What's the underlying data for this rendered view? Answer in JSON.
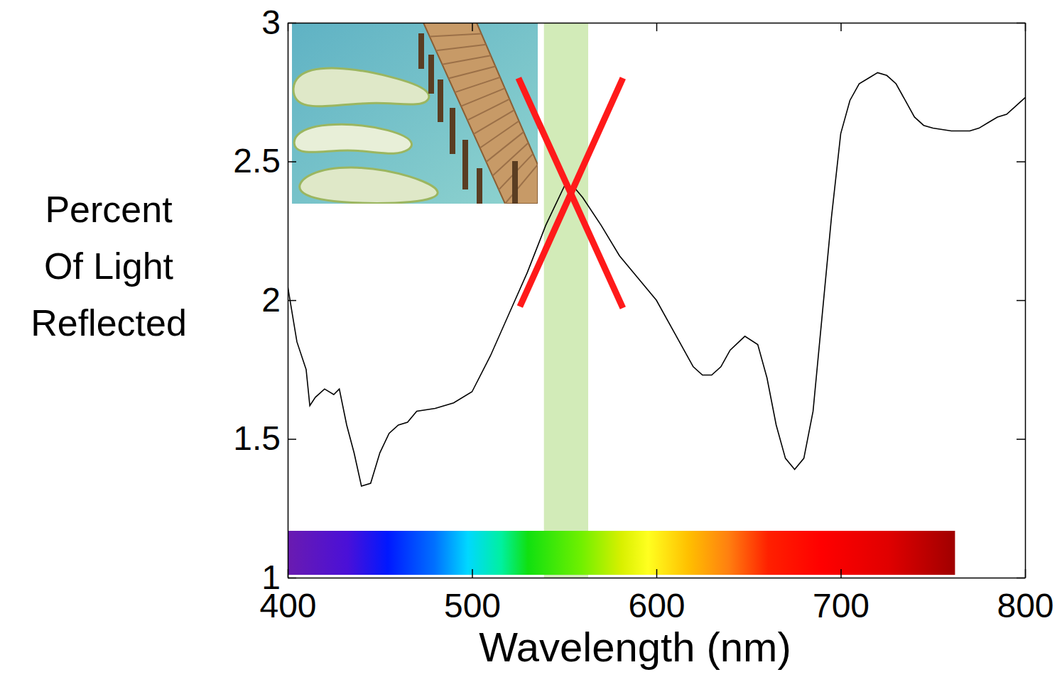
{
  "chart_data": {
    "type": "line",
    "x": [
      400,
      405,
      410,
      412,
      415,
      420,
      425,
      428,
      432,
      436,
      440,
      445,
      450,
      455,
      460,
      465,
      470,
      480,
      490,
      500,
      510,
      520,
      530,
      540,
      550,
      555,
      560,
      570,
      580,
      590,
      600,
      610,
      620,
      625,
      630,
      635,
      640,
      648,
      655,
      660,
      665,
      670,
      675,
      680,
      685,
      690,
      695,
      700,
      705,
      710,
      715,
      720,
      725,
      730,
      735,
      740,
      745,
      750,
      760,
      770,
      775,
      780,
      785,
      790,
      795,
      800
    ],
    "values": [
      2.05,
      1.85,
      1.75,
      1.62,
      1.65,
      1.68,
      1.66,
      1.68,
      1.55,
      1.45,
      1.33,
      1.34,
      1.45,
      1.52,
      1.55,
      1.56,
      1.6,
      1.61,
      1.63,
      1.67,
      1.8,
      1.95,
      2.1,
      2.27,
      2.41,
      2.41,
      2.37,
      2.27,
      2.16,
      2.08,
      2.0,
      1.88,
      1.76,
      1.73,
      1.73,
      1.76,
      1.82,
      1.87,
      1.84,
      1.72,
      1.55,
      1.43,
      1.39,
      1.43,
      1.6,
      1.95,
      2.3,
      2.6,
      2.72,
      2.78,
      2.8,
      2.82,
      2.81,
      2.78,
      2.72,
      2.66,
      2.63,
      2.62,
      2.61,
      2.61,
      2.62,
      2.64,
      2.66,
      2.67,
      2.7,
      2.73
    ],
    "color": "#000000",
    "x_label": "Wavelength (nm)",
    "y_label": "Percent Of Light Reflected",
    "xlim": [
      400,
      800
    ],
    "ylim": [
      1,
      3
    ],
    "xticks": [
      400,
      500,
      600,
      700,
      800
    ],
    "yticks": [
      1,
      1.5,
      2,
      2.5,
      3
    ],
    "highlight_band": [
      539,
      563
    ],
    "spectrum_bar": [
      400,
      762
    ]
  }
}
